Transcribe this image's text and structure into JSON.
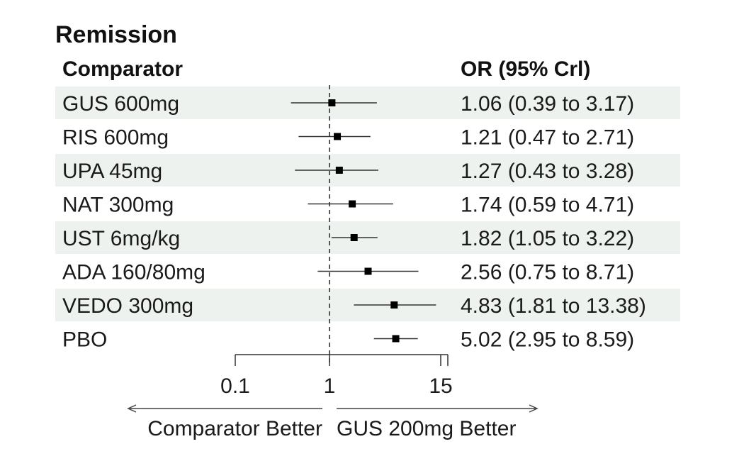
{
  "chart_data": {
    "type": "forest",
    "title": "Remission",
    "column_headers": {
      "left": "Comparator",
      "right": "OR (95% Crl)"
    },
    "x_scale": "log",
    "x_ticks": [
      "0.1",
      "1",
      "15"
    ],
    "x_tick_values": [
      0.1,
      1,
      15
    ],
    "xlim": [
      0.1,
      15
    ],
    "reference_line": 1,
    "direction_labels": {
      "left": "Comparator Better",
      "right": "GUS 200mg Better"
    },
    "rows": [
      {
        "label": "GUS 600mg",
        "or": 1.06,
        "low": 0.39,
        "high": 3.17,
        "text": "1.06 (0.39 to 3.17)"
      },
      {
        "label": "RIS 600mg",
        "or": 1.21,
        "low": 0.47,
        "high": 2.71,
        "text": "1.21 (0.47 to 2.71)"
      },
      {
        "label": "UPA 45mg",
        "or": 1.27,
        "low": 0.43,
        "high": 3.28,
        "text": "1.27 (0.43 to 3.28)"
      },
      {
        "label": "NAT 300mg",
        "or": 1.74,
        "low": 0.59,
        "high": 4.71,
        "text": "1.74 (0.59 to 4.71)"
      },
      {
        "label": "UST 6mg/kg",
        "or": 1.82,
        "low": 1.05,
        "high": 3.22,
        "text": "1.82 (1.05 to 3.22)"
      },
      {
        "label": "ADA 160/80mg",
        "or": 2.56,
        "low": 0.75,
        "high": 8.71,
        "text": "2.56 (0.75 to 8.71)"
      },
      {
        "label": "VEDO 300mg",
        "or": 4.83,
        "low": 1.81,
        "high": 13.38,
        "text": "4.83 (1.81 to 13.38)"
      },
      {
        "label": "PBO",
        "or": 5.02,
        "low": 2.95,
        "high": 8.59,
        "text": "5.02 (2.95 to 8.59)"
      }
    ],
    "colors": {
      "stripe": "#eef2ef",
      "ink": "#1a1a1a",
      "line": "#333333"
    }
  }
}
